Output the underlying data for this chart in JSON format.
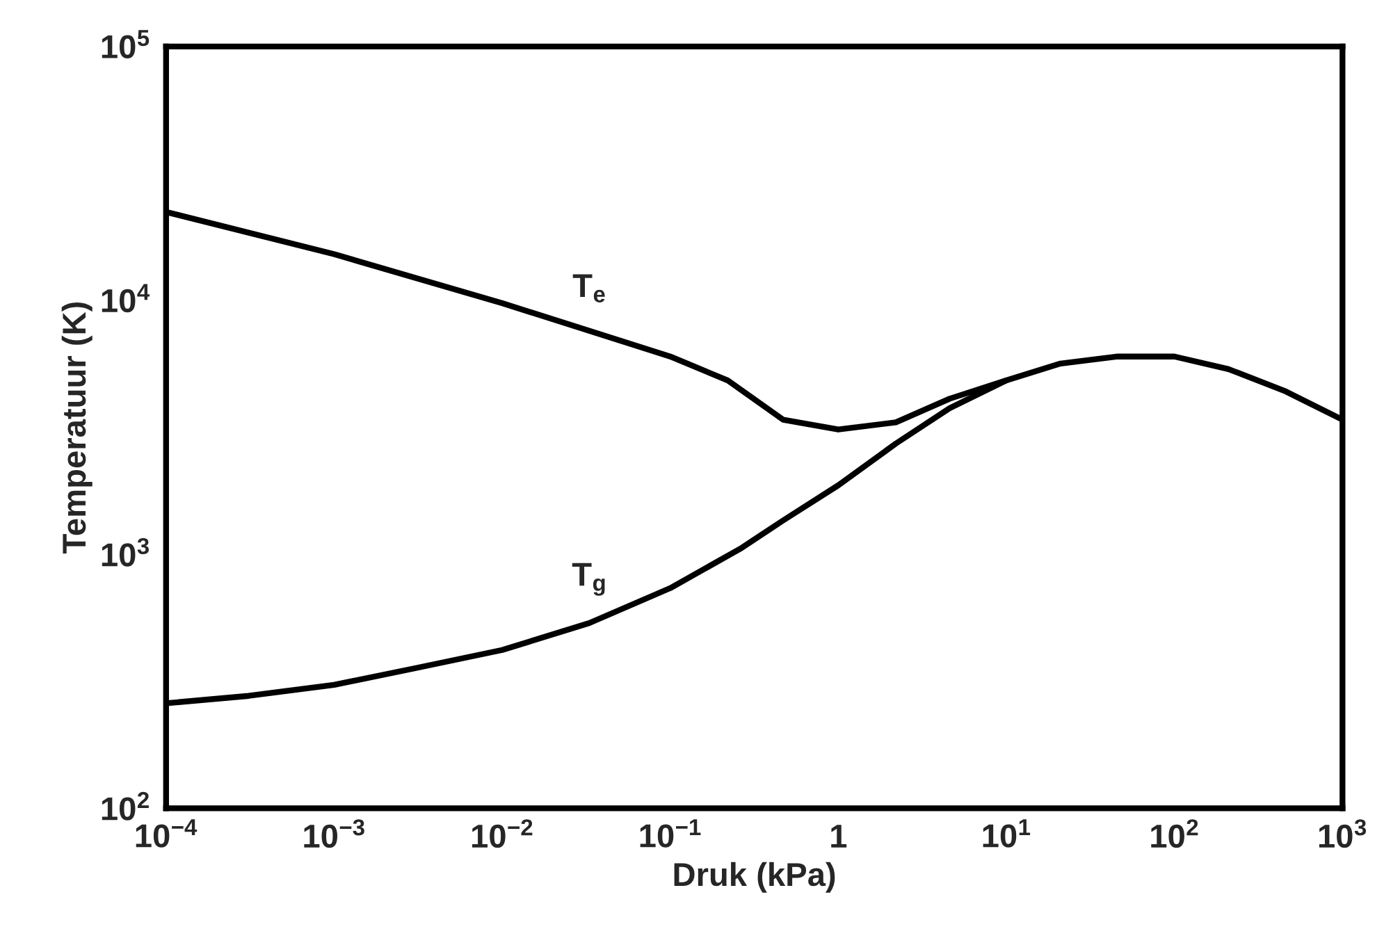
{
  "chart_data": {
    "type": "line",
    "xlabel": "Druk (kPa)",
    "ylabel": "Temperatuur (K)",
    "log": "xy",
    "grid": false,
    "legend": false,
    "marker": "none",
    "line_style": "solid",
    "xlim": [
      0.0001,
      1000
    ],
    "ylim": [
      100,
      100000
    ],
    "xticks": [
      {
        "value": 0.0001,
        "label": "10$^{−4}$"
      },
      {
        "value": 0.001,
        "label": "10$^{−3}$"
      },
      {
        "value": 0.01,
        "label": "10$^{−2}$"
      },
      {
        "value": 0.1,
        "label": "10$^{−1}$"
      },
      {
        "value": 1,
        "label": "1"
      },
      {
        "value": 10,
        "label": "10$^{1}$"
      },
      {
        "value": 100,
        "label": "10$^{2}$"
      },
      {
        "value": 1000,
        "label": "10$^{3}$"
      }
    ],
    "yticks": [
      {
        "value": 100,
        "label": "10$^{2}$"
      },
      {
        "value": 1000,
        "label": "10$^{3}$"
      },
      {
        "value": 10000,
        "label": "10$^{4}$"
      },
      {
        "value": 100000,
        "label": "10$^{5}$"
      }
    ],
    "series": [
      {
        "name": "T$_{e}$",
        "color": "#000000",
        "x": [
          0.0001,
          0.001,
          0.01,
          0.1,
          0.22,
          0.47,
          1,
          2.2,
          4.6,
          10,
          21,
          46,
          100,
          210,
          460,
          1000
        ],
        "values": [
          22300,
          15200,
          9750,
          6010,
          4840,
          3390,
          3100,
          3310,
          4100,
          4840,
          5640,
          6010,
          6010,
          5360,
          4380,
          3390
        ]
      },
      {
        "name": "T$_{g}$",
        "color": "#000000",
        "x": [
          0.0001,
          0.00031,
          0.001,
          0.0031,
          0.01,
          0.033,
          0.1,
          0.26,
          0.47,
          1,
          2.2,
          4.6,
          10
        ],
        "values": [
          259,
          277,
          306,
          357,
          420,
          536,
          736,
          1050,
          1360,
          1870,
          2730,
          3760,
          4840
        ]
      }
    ]
  }
}
